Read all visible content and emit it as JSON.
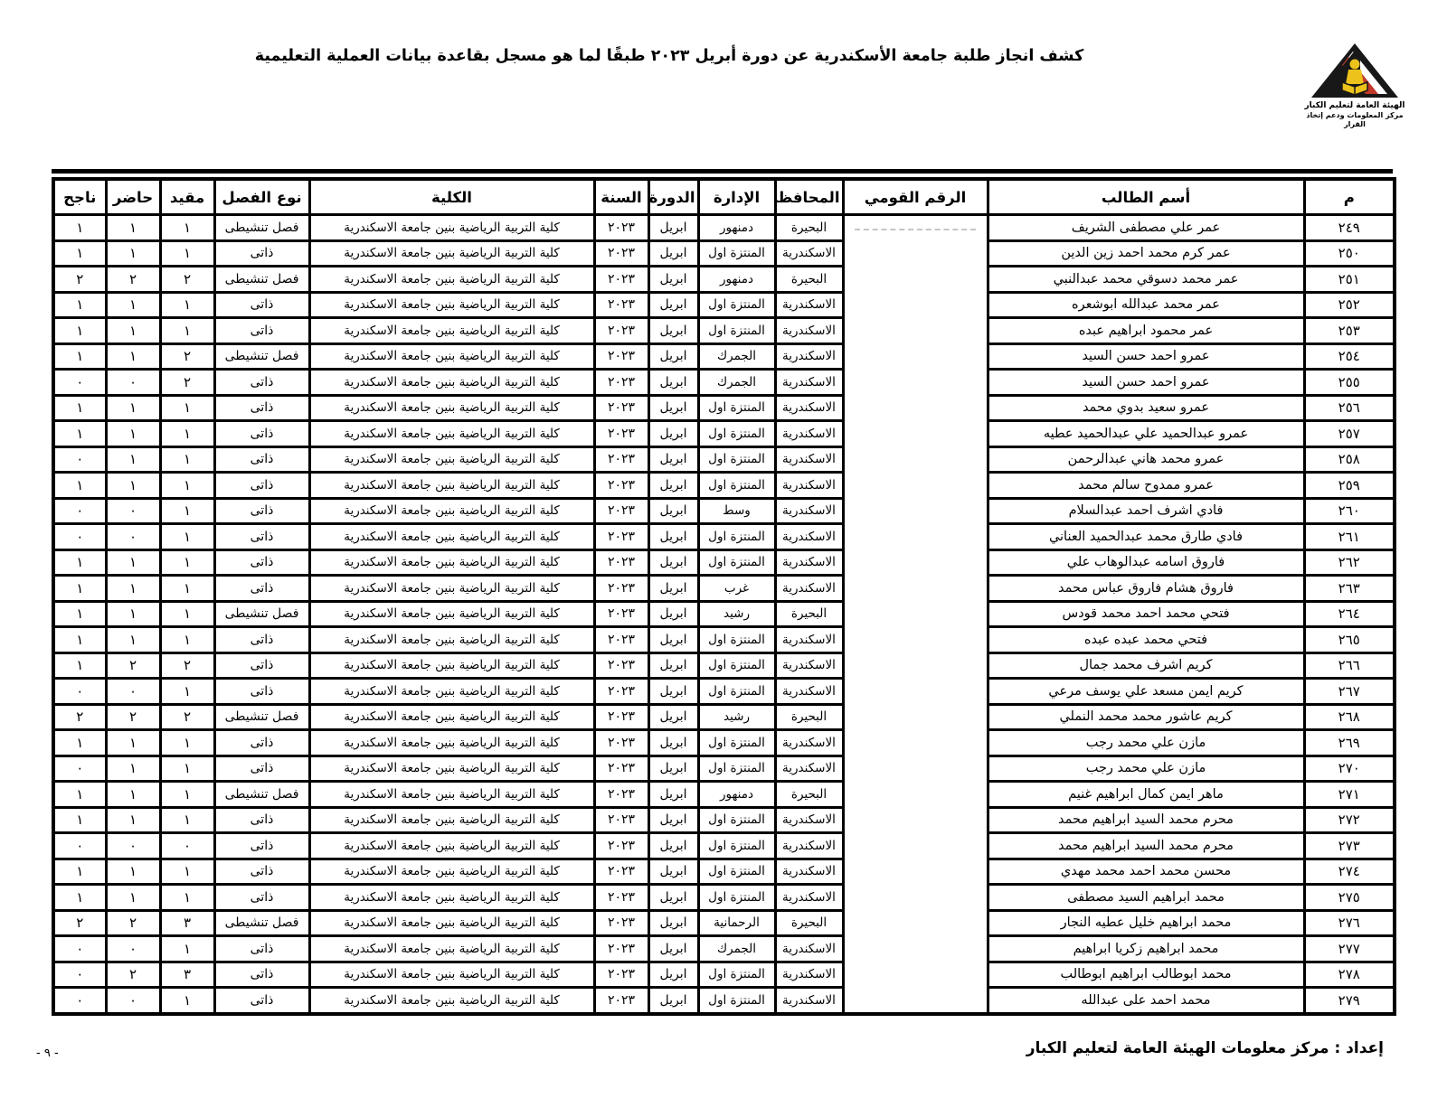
{
  "header": {
    "title": "كشف انجاز طلبة جامعة الأسكندرية عن دورة أبريل ٢٠٢٣ طبقًا لما هو مسجل بقاعدة بيانات العملية التعليمية",
    "logo": {
      "org_line1": "الهيئة العامة لتعليم الكبار",
      "org_line2": "مركز المعلومات ودعم إتخاذ القرار"
    }
  },
  "colors": {
    "text": "#000000",
    "border": "#000000",
    "logo_red": "#c0392b",
    "logo_yellow": "#edc31b",
    "redaction_gray": "#c6c6c6"
  },
  "table": {
    "columns": [
      "م",
      "أسم الطالب",
      "الرقم القومي",
      "المحافظة",
      "الإدارة",
      "الدورة",
      "السنة",
      "الكلية",
      "نوع الفصل",
      "مقيد",
      "حاضر",
      "ناجح"
    ],
    "rows": [
      {
        "no": "٢٤٩",
        "name": "عمر علي مصطفى الشريف",
        "national_id": "",
        "id_artifact": true,
        "governorate": "البحيرة",
        "administration": "دمنهور",
        "session": "ابريل",
        "year": "٢٠٢٣",
        "college": "كلية التربية الرياضية بنين جامعة الاسكندرية",
        "class_type": "فصل تنشيطى",
        "enrolled": "١",
        "present": "١",
        "passed": "١"
      },
      {
        "no": "٢٥٠",
        "name": "عمر كرم محمد احمد زين الدين",
        "national_id": "",
        "governorate": "الاسكندرية",
        "administration": "المنتزة اول",
        "session": "ابريل",
        "year": "٢٠٢٣",
        "college": "كلية التربية الرياضية بنين جامعة الاسكندرية",
        "class_type": "ذاتى",
        "enrolled": "١",
        "present": "١",
        "passed": "١"
      },
      {
        "no": "٢٥١",
        "name": "عمر محمد دسوقي محمد عبدالنبي",
        "national_id": "",
        "governorate": "البحيرة",
        "administration": "دمنهور",
        "session": "ابريل",
        "year": "٢٠٢٣",
        "college": "كلية التربية الرياضية بنين جامعة الاسكندرية",
        "class_type": "فصل تنشيطى",
        "enrolled": "٢",
        "present": "٢",
        "passed": "٢"
      },
      {
        "no": "٢٥٢",
        "name": "عمر محمد عبدالله ابوشعره",
        "national_id": "",
        "governorate": "الاسكندرية",
        "administration": "المنتزة اول",
        "session": "ابريل",
        "year": "٢٠٢٣",
        "college": "كلية التربية الرياضية بنين جامعة الاسكندرية",
        "class_type": "ذاتى",
        "enrolled": "١",
        "present": "١",
        "passed": "١"
      },
      {
        "no": "٢٥٣",
        "name": "عمر محمود ابراهيم عبده",
        "national_id": "",
        "governorate": "الاسكندرية",
        "administration": "المنتزة اول",
        "session": "ابريل",
        "year": "٢٠٢٣",
        "college": "كلية التربية الرياضية بنين جامعة الاسكندرية",
        "class_type": "ذاتى",
        "enrolled": "١",
        "present": "١",
        "passed": "١"
      },
      {
        "no": "٢٥٤",
        "name": "عمرو احمد حسن السيد",
        "national_id": "",
        "governorate": "الاسكندرية",
        "administration": "الجمرك",
        "session": "ابريل",
        "year": "٢٠٢٣",
        "college": "كلية التربية الرياضية بنين جامعة الاسكندرية",
        "class_type": "فصل تنشيطى",
        "enrolled": "٢",
        "present": "١",
        "passed": "١"
      },
      {
        "no": "٢٥٥",
        "name": "عمرو احمد حسن السيد",
        "national_id": "",
        "governorate": "الاسكندرية",
        "administration": "الجمرك",
        "session": "ابريل",
        "year": "٢٠٢٣",
        "college": "كلية التربية الرياضية بنين جامعة الاسكندرية",
        "class_type": "ذاتى",
        "enrolled": "٢",
        "present": "٠",
        "passed": "٠"
      },
      {
        "no": "٢٥٦",
        "name": "عمرو سعيد بدوي محمد",
        "national_id": "",
        "governorate": "الاسكندرية",
        "administration": "المنتزة اول",
        "session": "ابريل",
        "year": "٢٠٢٣",
        "college": "كلية التربية الرياضية بنين جامعة الاسكندرية",
        "class_type": "ذاتى",
        "enrolled": "١",
        "present": "١",
        "passed": "١"
      },
      {
        "no": "٢٥٧",
        "name": "عمرو عبدالحميد علي عبدالحميد عطيه",
        "national_id": "",
        "governorate": "الاسكندرية",
        "administration": "المنتزة اول",
        "session": "ابريل",
        "year": "٢٠٢٣",
        "college": "كلية التربية الرياضية بنين جامعة الاسكندرية",
        "class_type": "ذاتى",
        "enrolled": "١",
        "present": "١",
        "passed": "١"
      },
      {
        "no": "٢٥٨",
        "name": "عمرو محمد هاني عبدالرحمن",
        "national_id": "",
        "governorate": "الاسكندرية",
        "administration": "المنتزة اول",
        "session": "ابريل",
        "year": "٢٠٢٣",
        "college": "كلية التربية الرياضية بنين جامعة الاسكندرية",
        "class_type": "ذاتى",
        "enrolled": "١",
        "present": "١",
        "passed": "٠"
      },
      {
        "no": "٢٥٩",
        "name": "عمرو ممدوح سالم محمد",
        "national_id": "",
        "governorate": "الاسكندرية",
        "administration": "المنتزة اول",
        "session": "ابريل",
        "year": "٢٠٢٣",
        "college": "كلية التربية الرياضية بنين جامعة الاسكندرية",
        "class_type": "ذاتى",
        "enrolled": "١",
        "present": "١",
        "passed": "١"
      },
      {
        "no": "٢٦٠",
        "name": "فادي اشرف احمد عبدالسلام",
        "national_id": "",
        "governorate": "الاسكندرية",
        "administration": "وسط",
        "session": "ابريل",
        "year": "٢٠٢٣",
        "college": "كلية التربية الرياضية بنين جامعة الاسكندرية",
        "class_type": "ذاتى",
        "enrolled": "١",
        "present": "٠",
        "passed": "٠"
      },
      {
        "no": "٢٦١",
        "name": "فادي طارق محمد عبدالحميد العناني",
        "national_id": "",
        "governorate": "الاسكندرية",
        "administration": "المنتزة اول",
        "session": "ابريل",
        "year": "٢٠٢٣",
        "college": "كلية التربية الرياضية بنين جامعة الاسكندرية",
        "class_type": "ذاتى",
        "enrolled": "١",
        "present": "٠",
        "passed": "٠"
      },
      {
        "no": "٢٦٢",
        "name": "فاروق اسامه عبدالوهاب علي",
        "national_id": "",
        "governorate": "الاسكندرية",
        "administration": "المنتزة اول",
        "session": "ابريل",
        "year": "٢٠٢٣",
        "college": "كلية التربية الرياضية بنين جامعة الاسكندرية",
        "class_type": "ذاتى",
        "enrolled": "١",
        "present": "١",
        "passed": "١"
      },
      {
        "no": "٢٦٣",
        "name": "فاروق هشام فاروق عباس محمد",
        "national_id": "",
        "governorate": "الاسكندرية",
        "administration": "غرب",
        "session": "ابريل",
        "year": "٢٠٢٣",
        "college": "كلية التربية الرياضية بنين جامعة الاسكندرية",
        "class_type": "ذاتى",
        "enrolled": "١",
        "present": "١",
        "passed": "١"
      },
      {
        "no": "٢٦٤",
        "name": "فتحي محمد احمد محمد قودس",
        "national_id": "",
        "governorate": "البحيرة",
        "administration": "رشيد",
        "session": "ابريل",
        "year": "٢٠٢٣",
        "college": "كلية التربية الرياضية بنين جامعة الاسكندرية",
        "class_type": "فصل تنشيطى",
        "enrolled": "١",
        "present": "١",
        "passed": "١"
      },
      {
        "no": "٢٦٥",
        "name": "فتحي محمد عبده عبده",
        "national_id": "",
        "governorate": "الاسكندرية",
        "administration": "المنتزة اول",
        "session": "ابريل",
        "year": "٢٠٢٣",
        "college": "كلية التربية الرياضية بنين جامعة الاسكندرية",
        "class_type": "ذاتى",
        "enrolled": "١",
        "present": "١",
        "passed": "١"
      },
      {
        "no": "٢٦٦",
        "name": "كريم اشرف محمد جمال",
        "national_id": "",
        "governorate": "الاسكندرية",
        "administration": "المنتزة اول",
        "session": "ابريل",
        "year": "٢٠٢٣",
        "college": "كلية التربية الرياضية بنين جامعة الاسكندرية",
        "class_type": "ذاتى",
        "enrolled": "٢",
        "present": "٢",
        "passed": "١"
      },
      {
        "no": "٢٦٧",
        "name": "كريم ايمن مسعد علي يوسف مرعي",
        "national_id": "",
        "governorate": "الاسكندرية",
        "administration": "المنتزة اول",
        "session": "ابريل",
        "year": "٢٠٢٣",
        "college": "كلية التربية الرياضية بنين جامعة الاسكندرية",
        "class_type": "ذاتى",
        "enrolled": "١",
        "present": "٠",
        "passed": "٠"
      },
      {
        "no": "٢٦٨",
        "name": "كريم عاشور محمد محمد النملي",
        "national_id": "",
        "governorate": "البحيرة",
        "administration": "رشيد",
        "session": "ابريل",
        "year": "٢٠٢٣",
        "college": "كلية التربية الرياضية بنين جامعة الاسكندرية",
        "class_type": "فصل تنشيطى",
        "enrolled": "٢",
        "present": "٢",
        "passed": "٢"
      },
      {
        "no": "٢٦٩",
        "name": "مازن علي محمد رجب",
        "national_id": "",
        "governorate": "الاسكندرية",
        "administration": "المنتزة اول",
        "session": "ابريل",
        "year": "٢٠٢٣",
        "college": "كلية التربية الرياضية بنين جامعة الاسكندرية",
        "class_type": "ذاتى",
        "enrolled": "١",
        "present": "١",
        "passed": "١"
      },
      {
        "no": "٢٧٠",
        "name": "مازن علي محمد رجب",
        "national_id": "",
        "governorate": "الاسكندرية",
        "administration": "المنتزة اول",
        "session": "ابريل",
        "year": "٢٠٢٣",
        "college": "كلية التربية الرياضية بنين جامعة الاسكندرية",
        "class_type": "ذاتى",
        "enrolled": "١",
        "present": "١",
        "passed": "٠"
      },
      {
        "no": "٢٧١",
        "name": "ماهر ايمن كمال ابراهيم غنيم",
        "national_id": "",
        "governorate": "البحيرة",
        "administration": "دمنهور",
        "session": "ابريل",
        "year": "٢٠٢٣",
        "college": "كلية التربية الرياضية بنين جامعة الاسكندرية",
        "class_type": "فصل تنشيطى",
        "enrolled": "١",
        "present": "١",
        "passed": "١"
      },
      {
        "no": "٢٧٢",
        "name": "محرم محمد السيد ابراهيم محمد",
        "national_id": "",
        "governorate": "الاسكندرية",
        "administration": "المنتزة اول",
        "session": "ابريل",
        "year": "٢٠٢٣",
        "college": "كلية التربية الرياضية بنين جامعة الاسكندرية",
        "class_type": "ذاتى",
        "enrolled": "١",
        "present": "١",
        "passed": "١"
      },
      {
        "no": "٢٧٣",
        "name": "محرم محمد السيد ابراهيم محمد",
        "national_id": "",
        "governorate": "الاسكندرية",
        "administration": "المنتزة اول",
        "session": "ابريل",
        "year": "٢٠٢٣",
        "college": "كلية التربية الرياضية بنين جامعة الاسكندرية",
        "class_type": "ذاتى",
        "enrolled": "٠",
        "present": "٠",
        "passed": "٠"
      },
      {
        "no": "٢٧٤",
        "name": "محسن محمد احمد محمد مهدي",
        "national_id": "",
        "governorate": "الاسكندرية",
        "administration": "المنتزة اول",
        "session": "ابريل",
        "year": "٢٠٢٣",
        "college": "كلية التربية الرياضية بنين جامعة الاسكندرية",
        "class_type": "ذاتى",
        "enrolled": "١",
        "present": "١",
        "passed": "١"
      },
      {
        "no": "٢٧٥",
        "name": "محمد ابراهيم السيد مصطفى",
        "national_id": "",
        "governorate": "الاسكندرية",
        "administration": "المنتزة اول",
        "session": "ابريل",
        "year": "٢٠٢٣",
        "college": "كلية التربية الرياضية بنين جامعة الاسكندرية",
        "class_type": "ذاتى",
        "enrolled": "١",
        "present": "١",
        "passed": "١"
      },
      {
        "no": "٢٧٦",
        "name": "محمد ابراهيم خليل عطيه النجار",
        "national_id": "",
        "governorate": "البحيرة",
        "administration": "الرحمانية",
        "session": "ابريل",
        "year": "٢٠٢٣",
        "college": "كلية التربية الرياضية بنين جامعة الاسكندرية",
        "class_type": "فصل تنشيطى",
        "enrolled": "٣",
        "present": "٢",
        "passed": "٢"
      },
      {
        "no": "٢٧٧",
        "name": "محمد ابراهيم زكريا ابراهيم",
        "national_id": "",
        "governorate": "الاسكندرية",
        "administration": "الجمرك",
        "session": "ابريل",
        "year": "٢٠٢٣",
        "college": "كلية التربية الرياضية بنين جامعة الاسكندرية",
        "class_type": "ذاتى",
        "enrolled": "١",
        "present": "٠",
        "passed": "٠"
      },
      {
        "no": "٢٧٨",
        "name": "محمد ابوطالب ابراهيم ابوطالب",
        "national_id": "",
        "governorate": "الاسكندرية",
        "administration": "المنتزة اول",
        "session": "ابريل",
        "year": "٢٠٢٣",
        "college": "كلية التربية الرياضية بنين جامعة الاسكندرية",
        "class_type": "ذاتى",
        "enrolled": "٣",
        "present": "٢",
        "passed": "٠"
      },
      {
        "no": "٢٧٩",
        "name": "محمد احمد على عبدالله",
        "national_id": "",
        "governorate": "الاسكندرية",
        "administration": "المنتزة اول",
        "session": "ابريل",
        "year": "٢٠٢٣",
        "college": "كلية التربية الرياضية بنين جامعة الاسكندرية",
        "class_type": "ذاتى",
        "enrolled": "١",
        "present": "٠",
        "passed": "٠"
      }
    ]
  },
  "footer": {
    "prepared_by": "إعداد : مركز معلومات الهيئة العامة لتعليم الكبار",
    "page_number": "- ٩ -"
  }
}
